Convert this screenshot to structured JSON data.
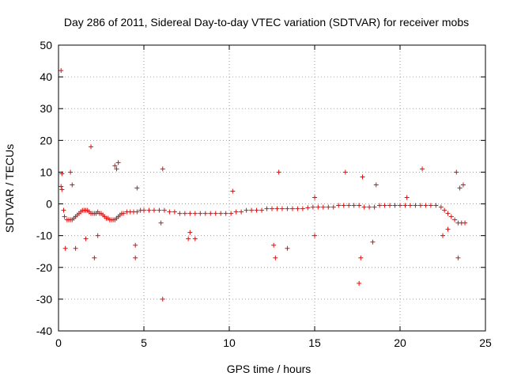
{
  "chart_data": {
    "type": "scatter",
    "title": "Day 286 of 2011, Sidereal Day-to-day VTEC variation (SDTVAR) for receiver mobs",
    "xlabel": "GPS time / hours",
    "ylabel": "SDTVAR / TECUs",
    "xlim": [
      0,
      25
    ],
    "ylim": [
      -40,
      50
    ],
    "xticks": [
      0,
      5,
      10,
      15,
      20,
      25
    ],
    "yticks": [
      -40,
      -30,
      -20,
      -10,
      0,
      10,
      20,
      30,
      40,
      50
    ],
    "grid": true,
    "marker": "+",
    "color": "#ff0000",
    "series": [
      {
        "name": "SDTVAR",
        "x": [
          0.15,
          0.2,
          0.3,
          0.35,
          0.5,
          0.6,
          0.7,
          0.8,
          0.9,
          1.0,
          1.1,
          1.2,
          1.3,
          1.4,
          1.5,
          1.6,
          1.7,
          1.8,
          1.9,
          2.0,
          2.1,
          2.2,
          2.3,
          2.4,
          2.5,
          2.6,
          2.7,
          2.8,
          2.9,
          3.0,
          3.1,
          3.2,
          3.3,
          3.4,
          3.5,
          3.6,
          3.7,
          3.8,
          4.0,
          4.2,
          4.4,
          4.6,
          4.8,
          5.0,
          5.3,
          5.6,
          5.9,
          6.2,
          6.5,
          6.8,
          7.1,
          7.4,
          7.7,
          8.0,
          8.3,
          8.6,
          8.9,
          9.2,
          9.5,
          9.8,
          10.1,
          10.4,
          10.7,
          11.0,
          11.3,
          11.6,
          11.9,
          12.2,
          12.5,
          12.8,
          13.1,
          13.4,
          13.7,
          14.0,
          14.3,
          14.6,
          14.9,
          15.2,
          15.5,
          15.8,
          16.1,
          16.4,
          16.7,
          17.0,
          17.3,
          17.6,
          17.9,
          18.2,
          18.5,
          18.8,
          19.1,
          19.4,
          19.7,
          20.0,
          20.3,
          20.6,
          20.9,
          21.2,
          21.5,
          21.8,
          22.1,
          22.4,
          22.6,
          22.8,
          23.0,
          23.2,
          23.4,
          23.6,
          23.8,
          0.15,
          0.2,
          0.4,
          0.7,
          0.8,
          1.0,
          1.6,
          1.9,
          2.1,
          2.3,
          3.3,
          3.5,
          3.4,
          4.5,
          4.5,
          4.6,
          6.1,
          6.0,
          6.1,
          7.6,
          7.7,
          8.0,
          10.2,
          12.7,
          12.9,
          13.4,
          12.6,
          15.0,
          15.0,
          16.8,
          17.6,
          17.7,
          17.8,
          18.4,
          18.6,
          20.4,
          21.3,
          23.3,
          23.4,
          23.5,
          23.7,
          22.5,
          22.8
        ],
        "y": [
          5.5,
          4.5,
          -2,
          -4,
          -5,
          -5,
          -5,
          -5,
          -4.5,
          -4,
          -3.5,
          -3,
          -2.5,
          -2,
          -2,
          -2,
          -2,
          -2.5,
          -3,
          -3,
          -3,
          -3,
          -2.5,
          -3,
          -3,
          -3.5,
          -4,
          -4.5,
          -4.5,
          -5,
          -5,
          -5,
          -5,
          -4.5,
          -4,
          -3.5,
          -3,
          -3,
          -2.5,
          -2.5,
          -2.5,
          -2.5,
          -2,
          -2,
          -2,
          -2,
          -2,
          -2,
          -2.5,
          -2.5,
          -3,
          -3,
          -3,
          -3,
          -3,
          -3,
          -3,
          -3,
          -3,
          -3,
          -3,
          -2.5,
          -2.5,
          -2,
          -2,
          -2,
          -2,
          -1.5,
          -1.5,
          -1.5,
          -1.5,
          -1.5,
          -1.5,
          -1.5,
          -1.5,
          -1.2,
          -1,
          -1,
          -1,
          -1,
          -1,
          -0.5,
          -0.5,
          -0.5,
          -0.5,
          -0.5,
          -1,
          -1,
          -1,
          -0.5,
          -0.5,
          -0.5,
          -0.5,
          -0.5,
          -0.5,
          -0.5,
          -0.5,
          -0.5,
          -0.5,
          -0.5,
          -0.5,
          -1,
          -2,
          -3,
          -4,
          -5,
          -6,
          -6,
          -6,
          42,
          9.5,
          -14,
          10,
          6,
          -14,
          -11,
          18,
          -17,
          -10,
          12,
          13,
          11,
          -17,
          -13,
          5,
          -30,
          -6,
          11,
          -11,
          -9,
          -11,
          4,
          -17,
          10,
          -14,
          -13,
          -10,
          2,
          10,
          -25,
          -17,
          8.5,
          -12,
          6,
          2,
          11,
          10,
          -17,
          5,
          6,
          -10,
          -8
        ]
      }
    ]
  }
}
